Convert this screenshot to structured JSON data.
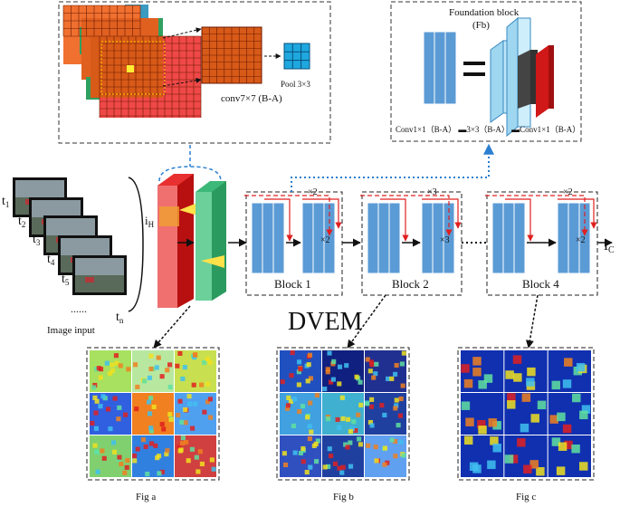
{
  "frames": [
    "t1",
    "t2",
    "t3",
    "t4",
    "t5",
    "tn"
  ],
  "frame_subscripts": [
    "1",
    "2",
    "3",
    "4",
    "5",
    "n"
  ],
  "frame_dots": "......",
  "image_input_label": "Image input",
  "i_h": {
    "main": "i",
    "sub": "H"
  },
  "i_c": {
    "main": "i",
    "sub": "C"
  },
  "conv_label": "conv7×7 (B-A)",
  "pool_label": "Pool 3×3",
  "foundation_title": "Foundation block",
  "foundation_sub": "(Fb)",
  "foundation_legend": "Conv1×1（B-A） ▬3×3（B-A） ▬Conv1×1（B-A）",
  "blocks": [
    {
      "label": "Block 1",
      "repeat_top": "×2",
      "repeat_inner": "×2"
    },
    {
      "label": "Block 2",
      "repeat_top": "×3",
      "repeat_inner": "×3"
    },
    {
      "label": "Block 4",
      "repeat_top": "×2",
      "repeat_inner": "×2"
    }
  ],
  "dvem_label": "DVEM",
  "fig_labels": [
    "Fig a",
    "Fig b",
    "Fig c"
  ],
  "colors": {
    "block_blue": "#5b9bd5",
    "conv_orange": "#e06010",
    "grid_red": "#f04848",
    "pool_blue": "#1fa8e0",
    "layer_red": "#e83030",
    "layer_green": "#3cb878",
    "dashed_red": "#e02020",
    "dotted_blue": "#2a7fd0"
  }
}
